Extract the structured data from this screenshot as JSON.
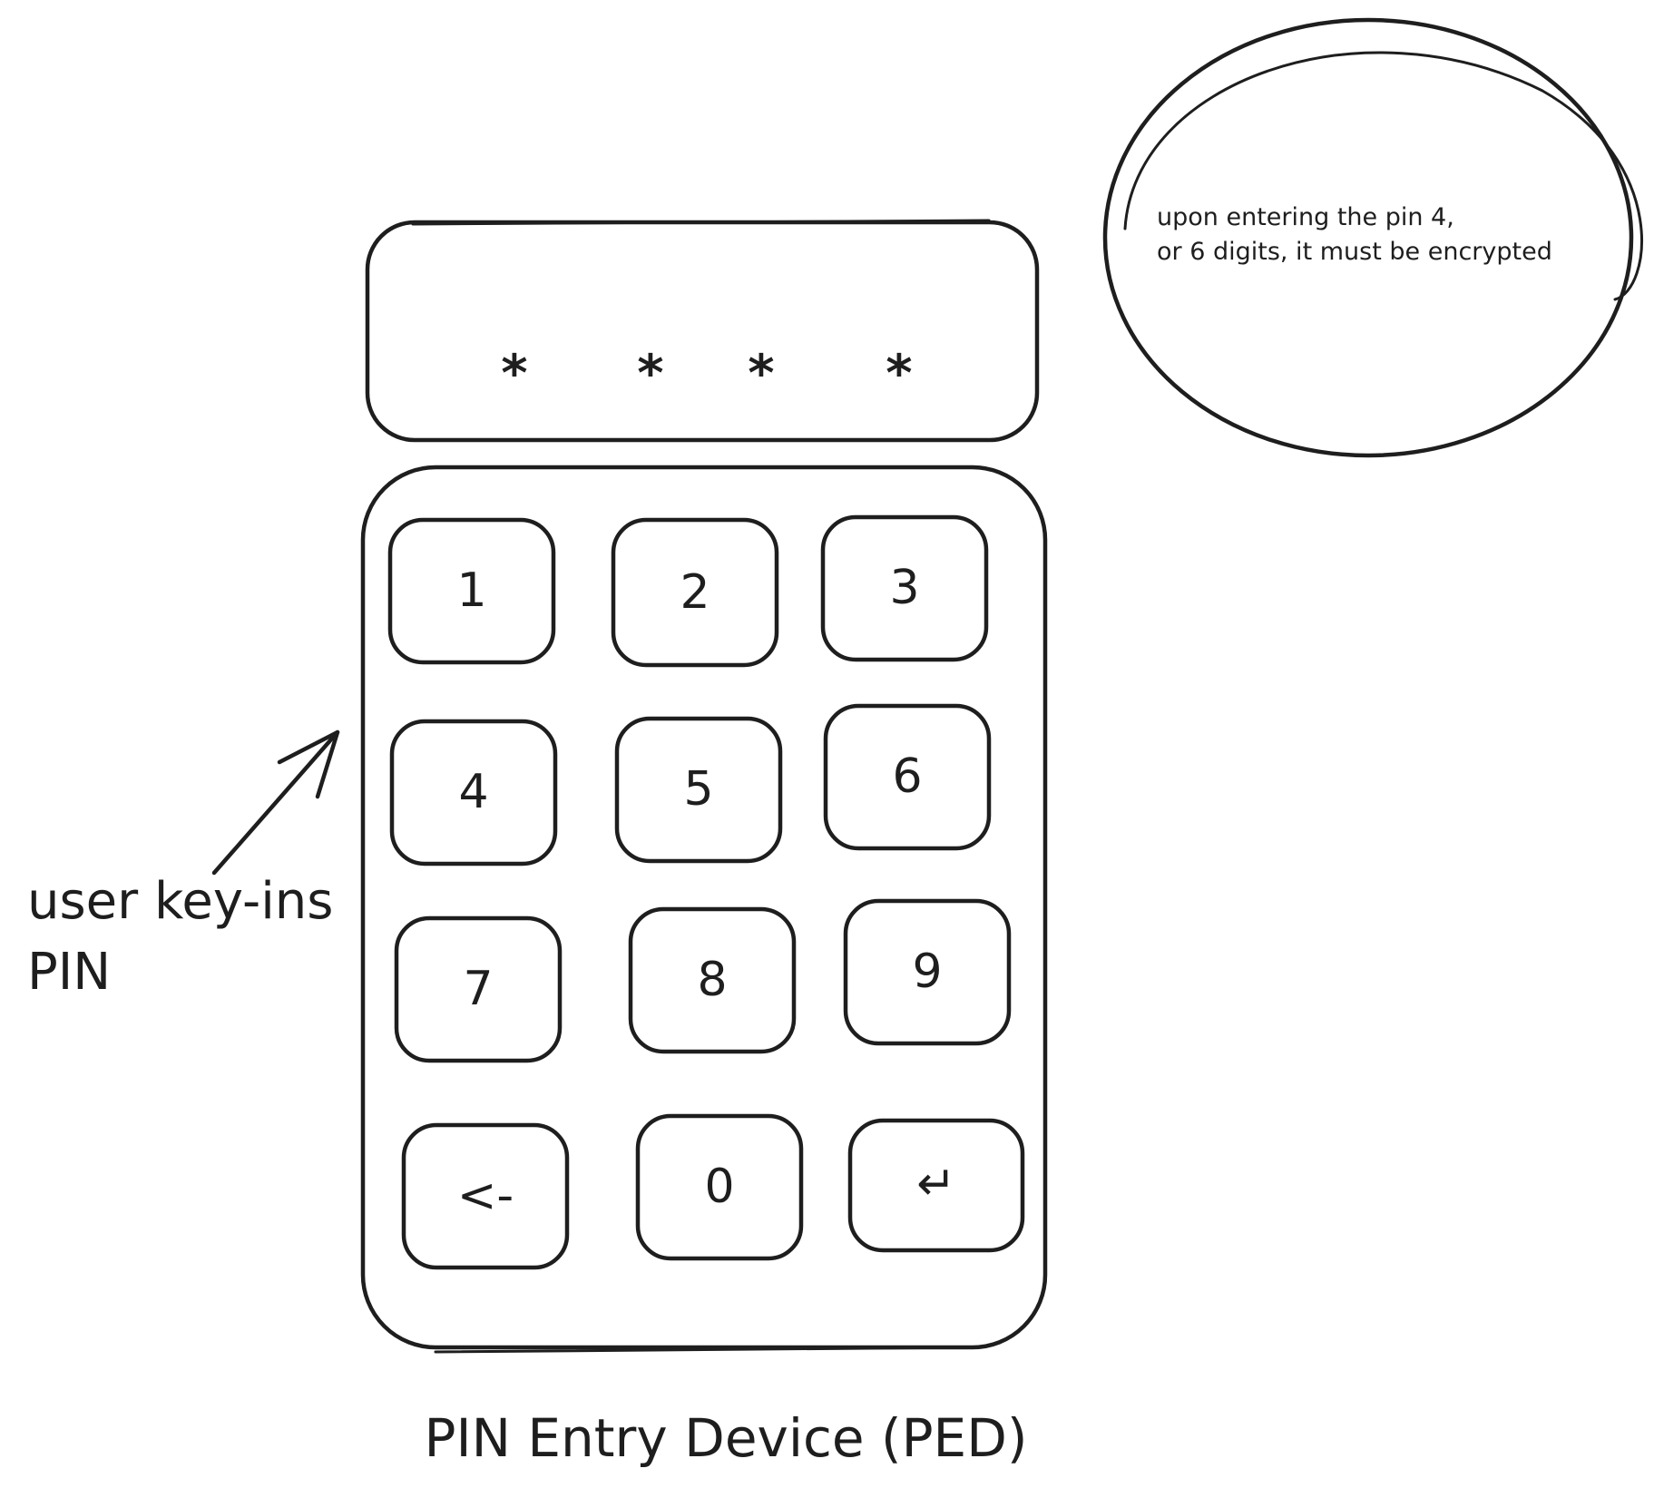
{
  "display": {
    "masked_digits": [
      "*",
      "*",
      "*",
      "*"
    ]
  },
  "keypad": {
    "keys": [
      {
        "label": "1",
        "name": "key-1"
      },
      {
        "label": "2",
        "name": "key-2"
      },
      {
        "label": "3",
        "name": "key-3"
      },
      {
        "label": "4",
        "name": "key-4"
      },
      {
        "label": "5",
        "name": "key-5"
      },
      {
        "label": "6",
        "name": "key-6"
      },
      {
        "label": "7",
        "name": "key-7"
      },
      {
        "label": "8",
        "name": "key-8"
      },
      {
        "label": "9",
        "name": "key-9"
      },
      {
        "label": "<-",
        "name": "key-backspace"
      },
      {
        "label": "0",
        "name": "key-0"
      },
      {
        "label": "↵",
        "name": "key-enter"
      }
    ]
  },
  "annotations": {
    "user_label_line1": "user key-ins",
    "user_label_line2": "PIN",
    "note_line1": "upon entering the pin 4,",
    "note_line2": "or 6 digits, it must be encrypted"
  },
  "caption": "PIN Entry Device (PED)",
  "colors": {
    "ink": "#1e1e1e",
    "background": "#ffffff"
  }
}
